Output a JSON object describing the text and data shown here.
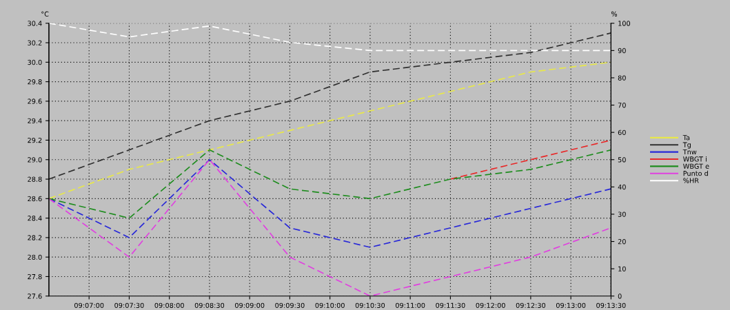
{
  "chart_data": {
    "type": "line",
    "ylabel": "°C",
    "y2label": "%",
    "x": [
      9.108333,
      9.125,
      9.141667,
      9.158333,
      9.175,
      9.191667,
      9.208333,
      9.225
    ],
    "xlim": [
      9.108333,
      9.225
    ],
    "xticks": [
      {
        "value": 9.116667,
        "label": "09:07:00"
      },
      {
        "value": 9.125,
        "label": "09:07:30"
      },
      {
        "value": 9.133333,
        "label": "09:08:00"
      },
      {
        "value": 9.141667,
        "label": "09:08:30"
      },
      {
        "value": 9.15,
        "label": "09:09:00"
      },
      {
        "value": 9.158333,
        "label": "09:09:30"
      },
      {
        "value": 9.166667,
        "label": "09:10:00"
      },
      {
        "value": 9.175,
        "label": "09:10:30"
      },
      {
        "value": 9.183333,
        "label": "09:11:00"
      },
      {
        "value": 9.191667,
        "label": "09:11:30"
      },
      {
        "value": 9.2,
        "label": "09:12:00"
      },
      {
        "value": 9.208333,
        "label": "09:12:30"
      },
      {
        "value": 9.216667,
        "label": "09:13:00"
      },
      {
        "value": 9.225,
        "label": "09:13:30"
      }
    ],
    "ylim": [
      27.6,
      30.4
    ],
    "yticks": [
      {
        "value": 27.6,
        "label": "27.6"
      },
      {
        "value": 27.8,
        "label": "27.8"
      },
      {
        "value": 28.0,
        "label": "28.0"
      },
      {
        "value": 28.2,
        "label": "28.2"
      },
      {
        "value": 28.4,
        "label": "28.4"
      },
      {
        "value": 28.6,
        "label": "28.6"
      },
      {
        "value": 28.8,
        "label": "28.8"
      },
      {
        "value": 29.0,
        "label": "29.0"
      },
      {
        "value": 29.2,
        "label": "29.2"
      },
      {
        "value": 29.4,
        "label": "29.4"
      },
      {
        "value": 29.6,
        "label": "29.6"
      },
      {
        "value": 29.8,
        "label": "29.8"
      },
      {
        "value": 30.0,
        "label": "30.0"
      },
      {
        "value": 30.2,
        "label": "30.2"
      },
      {
        "value": 30.4,
        "label": "30.4"
      }
    ],
    "y2lim": [
      0,
      100
    ],
    "y2ticks": [
      0,
      10,
      20,
      30,
      40,
      50,
      60,
      70,
      80,
      90,
      100
    ],
    "grid": true,
    "legend": "right",
    "line_style": "dashed",
    "marker": "none",
    "series": [
      {
        "name": "Ta",
        "color": "#e8e84a",
        "values": [
          28.6,
          28.9,
          29.1,
          29.3,
          29.5,
          29.7,
          29.9,
          30.0
        ]
      },
      {
        "name": "Tg",
        "color": "#303030",
        "values": [
          28.8,
          29.1,
          29.4,
          29.6,
          29.9,
          30.0,
          30.1,
          30.3
        ]
      },
      {
        "name": "Tnw",
        "color": "#2828d8",
        "values": [
          28.6,
          28.2,
          29.0,
          28.3,
          28.1,
          28.3,
          28.5,
          28.7
        ]
      },
      {
        "name": "WBGT i",
        "color": "#e82828",
        "values": [
          null,
          null,
          null,
          null,
          null,
          28.8,
          29.0,
          29.2
        ]
      },
      {
        "name": "WBGT e",
        "color": "#1e8c1e",
        "values": [
          28.6,
          28.4,
          29.1,
          28.7,
          28.6,
          28.8,
          28.9,
          29.1
        ]
      },
      {
        "name": "Punto d",
        "color": "#e040e0",
        "values": [
          28.6,
          28.0,
          29.0,
          28.0,
          27.6,
          27.8,
          28.0,
          28.3
        ]
      },
      {
        "name": "%HR",
        "color": "#ffffff",
        "axis": "y2",
        "values": [
          100,
          95,
          99,
          93,
          90,
          90,
          90,
          90
        ]
      }
    ]
  }
}
